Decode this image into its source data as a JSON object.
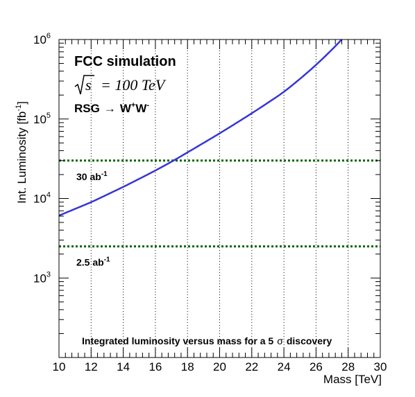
{
  "chart_data": {
    "type": "line",
    "title": "",
    "xlabel": "Mass [TeV]",
    "ylabel": "Int. Luminosity [fb",
    "ylabel_exp": "-1",
    "ylabel_close": "]",
    "xlim": [
      10,
      30
    ],
    "ylim": [
      100,
      1000000
    ],
    "yscale": "log",
    "grid_x": true,
    "grid_y": false,
    "x_ticks": [
      10,
      12,
      14,
      16,
      18,
      20,
      22,
      24,
      26,
      28,
      30
    ],
    "x_tick_labels": [
      "10",
      "12",
      "14",
      "16",
      "18",
      "20",
      "22",
      "24",
      "26",
      "28",
      "30"
    ],
    "y_ticks": [
      {
        "value": 1000,
        "base": "10",
        "exp": "3"
      },
      {
        "value": 10000,
        "base": "10",
        "exp": "4"
      },
      {
        "value": 100000,
        "base": "10",
        "exp": "5"
      },
      {
        "value": 1000000,
        "base": "10",
        "exp": "6"
      }
    ],
    "series": [
      {
        "color": "#3535d8",
        "x": [
          10,
          11,
          12,
          13,
          14,
          15,
          16,
          17,
          18,
          19,
          20,
          21,
          22,
          23,
          24,
          25,
          26,
          27,
          27.6
        ],
        "values": [
          6100,
          7400,
          9000,
          11200,
          14000,
          17700,
          22500,
          29000,
          38000,
          50000,
          66000,
          88000,
          118000,
          160000,
          220000,
          320000,
          480000,
          750000,
          1000000
        ]
      }
    ],
    "reference_lines": [
      {
        "value": 30000,
        "label": "30 ab",
        "label_exp": "-1",
        "color": "#006400"
      },
      {
        "value": 2500,
        "label": "2.5 ab",
        "label_exp": "-1",
        "color": "#006400"
      }
    ],
    "annotations": {
      "line1": "FCC simulation",
      "sqrt_s": "s",
      "energy": "= 100 TeV",
      "process_a": "RSG",
      "arrow": "→",
      "process_b": "W",
      "w_plus": "+",
      "w_minus": "-",
      "bottom_text_a": "Integrated luminosity versus mass for a 5",
      "sigma": "σ",
      "bottom_text_b": "discovery"
    }
  }
}
